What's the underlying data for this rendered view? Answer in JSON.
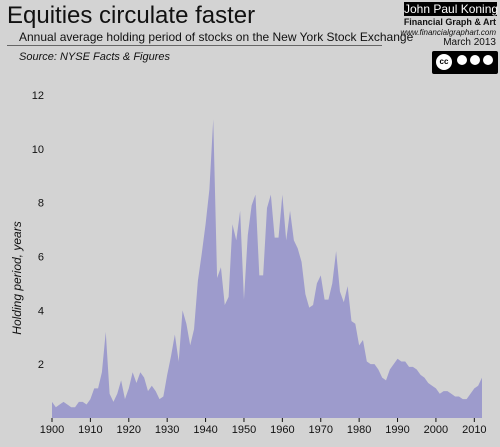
{
  "header": {
    "title": "Equities circulate faster",
    "subtitle": "Annual average holding period of stocks on the New York Stock Exchange",
    "source": "Source: NYSE Facts & Figures"
  },
  "credit": {
    "author": "John Paul Koning",
    "org": "Financial Graph & Art",
    "site": "www.financialgraphart.com",
    "date": "March 2013",
    "license_badge": "cc"
  },
  "colors": {
    "background": "#d3d3d3",
    "area_fill": "#9d9bcc"
  },
  "chart_data": {
    "type": "area",
    "title": "Equities circulate faster",
    "xlabel": "",
    "ylabel": "Holding period, years",
    "xlim": [
      1900,
      2012
    ],
    "ylim": [
      0,
      12
    ],
    "x_ticks": [
      1900,
      1910,
      1920,
      1930,
      1940,
      1950,
      1960,
      1970,
      1980,
      1990,
      2000,
      2010
    ],
    "y_ticks": [
      2,
      4,
      6,
      8,
      10,
      12
    ],
    "grid": false,
    "series": [
      {
        "x": [
          1900,
          1901,
          1902,
          1903,
          1904,
          1905,
          1906,
          1907,
          1908,
          1909,
          1910,
          1911,
          1912,
          1913,
          1914,
          1915,
          1916,
          1917,
          1918,
          1919,
          1920,
          1921,
          1922,
          1923,
          1924,
          1925,
          1926,
          1927,
          1928,
          1929,
          1930,
          1931,
          1932,
          1933,
          1934,
          1935,
          1936,
          1937,
          1938,
          1939,
          1940,
          1941,
          1942,
          1943,
          1944,
          1945,
          1946,
          1947,
          1948,
          1949,
          1950,
          1951,
          1952,
          1953,
          1954,
          1955,
          1956,
          1957,
          1958,
          1959,
          1960,
          1961,
          1962,
          1963,
          1964,
          1965,
          1966,
          1967,
          1968,
          1969,
          1970,
          1971,
          1972,
          1973,
          1974,
          1975,
          1976,
          1977,
          1978,
          1979,
          1980,
          1981,
          1982,
          1983,
          1984,
          1985,
          1986,
          1987,
          1988,
          1989,
          1990,
          1991,
          1992,
          1993,
          1994,
          1995,
          1996,
          1997,
          1998,
          1999,
          2000,
          2001,
          2002,
          2003,
          2004,
          2005,
          2006,
          2007,
          2008,
          2009,
          2010,
          2011,
          2012
        ],
        "y": [
          0.6,
          0.4,
          0.5,
          0.6,
          0.5,
          0.4,
          0.4,
          0.6,
          0.6,
          0.5,
          0.7,
          1.1,
          1.1,
          1.7,
          3.2,
          0.9,
          0.6,
          0.9,
          1.4,
          0.7,
          1.1,
          1.7,
          1.3,
          1.7,
          1.5,
          1.0,
          1.2,
          1.0,
          0.7,
          0.8,
          1.6,
          2.3,
          3.1,
          2.1,
          4.0,
          3.5,
          2.7,
          3.3,
          5.1,
          6.1,
          7.2,
          8.5,
          11.1,
          5.2,
          5.6,
          4.2,
          4.5,
          7.2,
          6.6,
          7.7,
          4.4,
          6.8,
          7.9,
          8.3,
          5.3,
          5.3,
          7.8,
          8.3,
          6.7,
          6.7,
          8.3,
          6.6,
          7.7,
          6.6,
          6.3,
          5.8,
          4.6,
          4.1,
          4.2,
          5.0,
          5.3,
          4.4,
          4.4,
          5.0,
          6.2,
          4.7,
          4.3,
          4.9,
          3.6,
          3.5,
          2.7,
          2.9,
          2.1,
          2.0,
          2.0,
          1.8,
          1.5,
          1.4,
          1.8,
          2.0,
          2.2,
          2.1,
          2.1,
          1.9,
          1.9,
          1.8,
          1.6,
          1.5,
          1.3,
          1.2,
          1.1,
          0.9,
          1.0,
          1.0,
          0.9,
          0.8,
          0.8,
          0.7,
          0.7,
          0.9,
          1.1,
          1.2,
          1.5
        ]
      }
    ]
  }
}
